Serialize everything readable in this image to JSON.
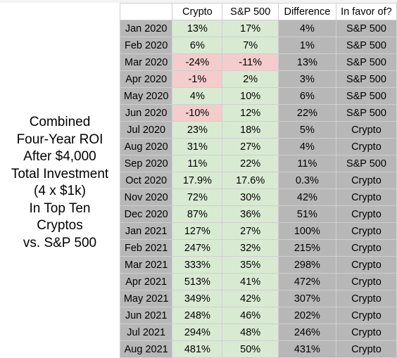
{
  "side_label": {
    "lines": [
      "Combined",
      "Four-Year ROI",
      "After $4,000",
      "Total Investment",
      "(4 x $1k)",
      "In Top Ten",
      "Cryptos",
      "vs. S&P 500"
    ]
  },
  "headers": [
    "",
    "Crypto",
    "S&P 500",
    "Difference",
    "In favor of?"
  ],
  "colors": {
    "month_bg": "#b7b7b7",
    "green_bg": "#d9ead3",
    "negative_bg": "#f4cccc"
  },
  "rows": [
    {
      "month": "Jan 2020",
      "crypto": "13%",
      "sp": "17%",
      "diff": "4%",
      "favor": "S&P 500",
      "crypto_neg": false,
      "sp_neg": false
    },
    {
      "month": "Feb 2020",
      "crypto": "6%",
      "sp": "7%",
      "diff": "1%",
      "favor": "S&P 500",
      "crypto_neg": false,
      "sp_neg": false
    },
    {
      "month": "Mar 2020",
      "crypto": "-24%",
      "sp": "-11%",
      "diff": "13%",
      "favor": "S&P 500",
      "crypto_neg": true,
      "sp_neg": true
    },
    {
      "month": "Apr 2020",
      "crypto": "-1%",
      "sp": "2%",
      "diff": "3%",
      "favor": "S&P 500",
      "crypto_neg": true,
      "sp_neg": false
    },
    {
      "month": "May 2020",
      "crypto": "4%",
      "sp": "10%",
      "diff": "6%",
      "favor": "S&P 500",
      "crypto_neg": false,
      "sp_neg": false
    },
    {
      "month": "Jun 2020",
      "crypto": "-10%",
      "sp": "12%",
      "diff": "22%",
      "favor": "S&P 500",
      "crypto_neg": true,
      "sp_neg": false
    },
    {
      "month": "Jul 2020",
      "crypto": "23%",
      "sp": "18%",
      "diff": "5%",
      "favor": "Crypto",
      "crypto_neg": false,
      "sp_neg": false
    },
    {
      "month": "Aug 2020",
      "crypto": "31%",
      "sp": "27%",
      "diff": "4%",
      "favor": "Crypto",
      "crypto_neg": false,
      "sp_neg": false
    },
    {
      "month": "Sep 2020",
      "crypto": "11%",
      "sp": "22%",
      "diff": "11%",
      "favor": "S&P 500",
      "crypto_neg": false,
      "sp_neg": false
    },
    {
      "month": "Oct 2020",
      "crypto": "17.9%",
      "sp": "17.6%",
      "diff": "0.3%",
      "favor": "Crypto",
      "crypto_neg": false,
      "sp_neg": false
    },
    {
      "month": "Nov 2020",
      "crypto": "72%",
      "sp": "30%",
      "diff": "42%",
      "favor": "Crypto",
      "crypto_neg": false,
      "sp_neg": false
    },
    {
      "month": "Dec 2020",
      "crypto": "87%",
      "sp": "36%",
      "diff": "51%",
      "favor": "Crypto",
      "crypto_neg": false,
      "sp_neg": false
    },
    {
      "month": "Jan 2021",
      "crypto": "127%",
      "sp": "27%",
      "diff": "100%",
      "favor": "Crypto",
      "crypto_neg": false,
      "sp_neg": false
    },
    {
      "month": "Feb 2021",
      "crypto": "247%",
      "sp": "32%",
      "diff": "215%",
      "favor": "Crypto",
      "crypto_neg": false,
      "sp_neg": false
    },
    {
      "month": "Mar 2021",
      "crypto": "333%",
      "sp": "35%",
      "diff": "298%",
      "favor": "Crypto",
      "crypto_neg": false,
      "sp_neg": false
    },
    {
      "month": "Apr 2021",
      "crypto": "513%",
      "sp": "41%",
      "diff": "472%",
      "favor": "Crypto",
      "crypto_neg": false,
      "sp_neg": false
    },
    {
      "month": "May 2021",
      "crypto": "349%",
      "sp": "42%",
      "diff": "307%",
      "favor": "Crypto",
      "crypto_neg": false,
      "sp_neg": false
    },
    {
      "month": "Jun 2021",
      "crypto": "248%",
      "sp": "46%",
      "diff": "202%",
      "favor": "Crypto",
      "crypto_neg": false,
      "sp_neg": false
    },
    {
      "month": "Jul 2021",
      "crypto": "294%",
      "sp": "48%",
      "diff": "246%",
      "favor": "Crypto",
      "crypto_neg": false,
      "sp_neg": false
    },
    {
      "month": "Aug 2021",
      "crypto": "481%",
      "sp": "50%",
      "diff": "431%",
      "favor": "Crypto",
      "crypto_neg": false,
      "sp_neg": false
    }
  ]
}
